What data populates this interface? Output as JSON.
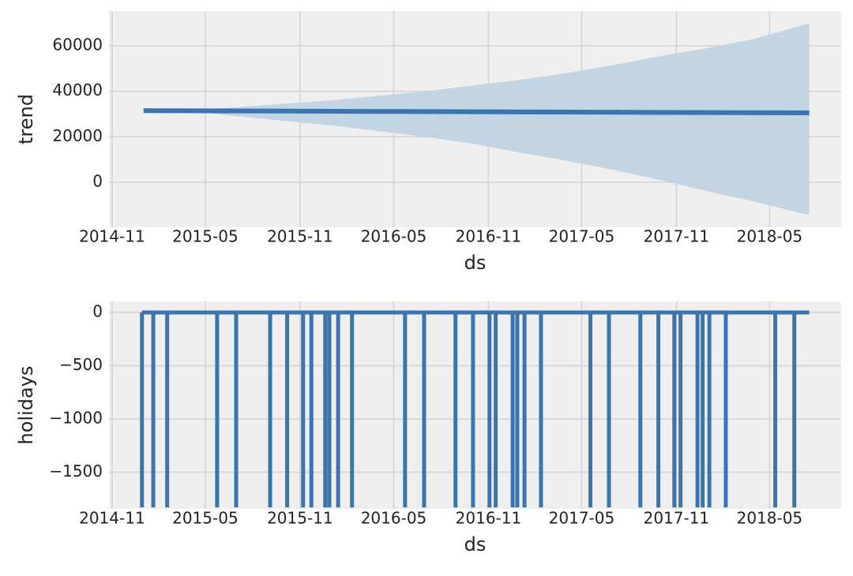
{
  "chart_data": [
    {
      "type": "band",
      "ylabel": "trend",
      "xlabel": "ds",
      "x": [
        16436,
        16526,
        16617,
        16709,
        16801,
        16892,
        16983,
        17075,
        17167,
        17257,
        17348,
        17440,
        17532,
        17622,
        17729
      ],
      "values": [
        31500,
        31430,
        31360,
        31290,
        31220,
        31150,
        31080,
        31000,
        30930,
        30860,
        30790,
        30720,
        30650,
        30580,
        30500
      ],
      "lower": [
        31400,
        31300,
        29000,
        27000,
        25000,
        22500,
        20000,
        17000,
        13000,
        9500,
        5500,
        1000,
        -4000,
        -8500,
        -14500
      ],
      "upper": [
        31600,
        31700,
        33000,
        34500,
        36000,
        38000,
        40000,
        42500,
        45000,
        48000,
        51500,
        55500,
        59000,
        63000,
        70000
      ],
      "color": "#3a75b0",
      "band_color": "#c3d4e3",
      "xlim": [
        16369,
        17791
      ],
      "ylim": [
        -19800,
        75300
      ],
      "xticks": [
        {
          "value": 16375,
          "label": "2014-11"
        },
        {
          "value": 16556,
          "label": "2015-05"
        },
        {
          "value": 16740,
          "label": "2015-11"
        },
        {
          "value": 16922,
          "label": "2016-05"
        },
        {
          "value": 17106,
          "label": "2016-11"
        },
        {
          "value": 17287,
          "label": "2017-05"
        },
        {
          "value": 17471,
          "label": "2017-11"
        },
        {
          "value": 17652,
          "label": "2018-05"
        }
      ],
      "yticks": [
        0,
        20000,
        40000,
        60000
      ],
      "grid": true
    },
    {
      "type": "spike",
      "ylabel": "holidays",
      "xlabel": "ds",
      "x": [
        16433,
        16455,
        16482,
        16579,
        16616,
        16682,
        16715,
        16746,
        16762,
        16789,
        16797,
        16814,
        16841,
        16944,
        16981,
        17042,
        17076,
        17108,
        17120,
        17153,
        17162,
        17176,
        17208,
        17304,
        17340,
        17401,
        17436,
        17467,
        17479,
        17512,
        17522,
        17535,
        17567,
        17663,
        17700,
        17729
      ],
      "values": [
        -1830,
        -1830,
        -1830,
        -1830,
        -1830,
        -1830,
        -1830,
        -1830,
        -1830,
        -1830,
        -1830,
        -1830,
        -1830,
        -1830,
        -1830,
        -1830,
        -1830,
        -1830,
        -1830,
        -1830,
        -1830,
        -1830,
        -1830,
        -1830,
        -1830,
        -1830,
        -1830,
        -1830,
        -1830,
        -1830,
        -1830,
        -1830,
        -1830,
        -1830,
        -1830,
        0
      ],
      "color": "#3a75b0",
      "xlim": [
        16369,
        17791
      ],
      "ylim": [
        -1844,
        104
      ],
      "xticks": [
        {
          "value": 16375,
          "label": "2014-11"
        },
        {
          "value": 16556,
          "label": "2015-05"
        },
        {
          "value": 16740,
          "label": "2015-11"
        },
        {
          "value": 16922,
          "label": "2016-05"
        },
        {
          "value": 17106,
          "label": "2016-11"
        },
        {
          "value": 17287,
          "label": "2017-05"
        },
        {
          "value": 17471,
          "label": "2017-11"
        },
        {
          "value": 17652,
          "label": "2018-05"
        }
      ],
      "yticks": [
        {
          "value": -1500,
          "label": "−1500"
        },
        {
          "value": -1000,
          "label": "−1000"
        },
        {
          "value": -500,
          "label": "−500"
        },
        0
      ],
      "grid": true
    }
  ]
}
